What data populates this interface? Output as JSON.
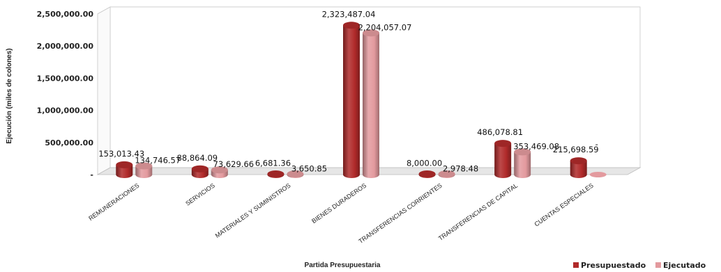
{
  "chart_data": {
    "type": "bar",
    "title": "",
    "xlabel": "Partida Presupuestaria",
    "ylabel": "Ejecución (miles de colones)",
    "ylim": [
      0,
      2500000
    ],
    "yticks": [
      0,
      500000,
      1000000,
      1500000,
      2000000,
      2500000
    ],
    "ytick_labels": [
      "-",
      "500,000.00",
      "1,000,000.00",
      "1,500,000.00",
      "2,000,000.00",
      "2,500,000.00"
    ],
    "categories": [
      "REMUNERACIONES",
      "SERVICIOS",
      "MATERIALES Y SUMINISTROS",
      "BIENES DURADEROS",
      "TRANSFERENCIAS CORRIENTES",
      "TRANSFERENCIAS DE CAPITAL",
      "CUENTAS ESPECIALES"
    ],
    "series": [
      {
        "name": "Presupuestado",
        "color": "#b02a2a",
        "values": [
          153013.43,
          88864.09,
          6681.36,
          2323487.04,
          8000.0,
          486078.81,
          215698.59
        ],
        "labels": [
          "153,013.43",
          "88,864.09",
          "6,681.36",
          "2,323,487.04",
          "8,000.00",
          "486,078.81",
          "215,698.59"
        ]
      },
      {
        "name": "Ejecutado",
        "color": "#e39a9e",
        "values": [
          134746.57,
          73629.66,
          3650.85,
          2204057.07,
          2978.48,
          353469.08,
          0
        ],
        "labels": [
          "134,746.57",
          "73,629.66",
          "3,650.85",
          "2,204,057.07",
          "2,978.48",
          "353,469.08",
          "-"
        ]
      }
    ],
    "grid": true,
    "legend": "bottom-right"
  }
}
